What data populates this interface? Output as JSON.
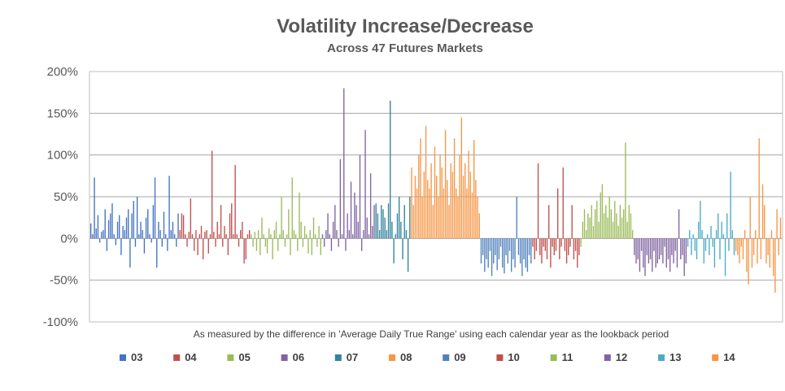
{
  "chart_data": {
    "type": "bar",
    "title": "Volatility Increase/Decrease",
    "subtitle": "Across 47 Futures Markets",
    "note": "As measured by the difference in 'Average  Daily True Range' using each calendar year as the lookback period",
    "y_ticks": [
      "200%",
      "150%",
      "100%",
      "50%",
      "0%",
      "-50%",
      "-100%"
    ],
    "ylim": [
      -100,
      200
    ],
    "grid": true,
    "legend_position": "bottom",
    "series": [
      {
        "name": "03",
        "color": "#4472C4",
        "values": [
          18,
          5,
          73,
          12,
          28,
          -5,
          8,
          10,
          35,
          -15,
          22,
          30,
          42,
          5,
          -8,
          20,
          28,
          -20,
          15,
          10,
          25,
          35,
          -35,
          30,
          45,
          -10,
          50,
          5,
          20,
          10,
          -18,
          25,
          35,
          5,
          -5,
          40,
          73,
          -35,
          20,
          10,
          -10,
          32,
          5,
          -15,
          75,
          10,
          20,
          5,
          -10,
          30
        ]
      },
      {
        "name": "04",
        "color": "#C0504D",
        "values": [
          10,
          30,
          28,
          5,
          -10,
          8,
          48,
          5,
          -15,
          10,
          -20,
          5,
          15,
          -25,
          8,
          10,
          -18,
          5,
          105,
          8,
          -10,
          20,
          5,
          40,
          -10,
          15,
          5,
          -20,
          30,
          42,
          5,
          88,
          5,
          -10,
          10,
          20,
          -30,
          -25,
          5,
          10
        ]
      },
      {
        "name": "05",
        "color": "#9BBB59",
        "values": [
          5,
          -10,
          8,
          -15,
          10,
          -20,
          25,
          5,
          -10,
          -18,
          12,
          5,
          -25,
          10,
          20,
          -15,
          5,
          50,
          10,
          -10,
          5,
          35,
          -20,
          73,
          10,
          5,
          -15,
          55,
          20,
          -10,
          15,
          5,
          -18,
          10,
          -20,
          25,
          5,
          -10,
          15,
          -20
        ]
      },
      {
        "name": "06",
        "color": "#8064A2",
        "values": [
          5,
          -10,
          10,
          30,
          5,
          -15,
          20,
          40,
          10,
          -10,
          95,
          5,
          180,
          -15,
          30,
          10,
          68,
          5,
          55,
          40,
          20,
          100,
          -15,
          10,
          130,
          25,
          5,
          78,
          15,
          40
        ]
      },
      {
        "name": "07",
        "color": "#31849B",
        "values": [
          42,
          30,
          10,
          40,
          35,
          25,
          10,
          42,
          165,
          20,
          -30,
          5,
          30,
          50,
          20,
          -25,
          40,
          10,
          -40,
          50
        ]
      },
      {
        "name": "08",
        "color": "#F79646",
        "values": [
          85,
          40,
          75,
          60,
          100,
          120,
          50,
          80,
          135,
          70,
          60,
          90,
          40,
          110,
          75,
          50,
          100,
          85,
          60,
          130,
          70,
          40,
          90,
          80,
          120,
          60,
          50,
          100,
          145,
          75,
          90,
          60,
          105,
          80,
          55,
          118,
          70,
          50,
          30
        ]
      },
      {
        "name": "09",
        "color": "#4F81BD",
        "values": [
          -30,
          -20,
          -40,
          -25,
          -35,
          -15,
          -45,
          -30,
          -20,
          -38,
          -25,
          -10,
          -35,
          -42,
          -20,
          -30,
          -15,
          -40,
          -25,
          -35,
          50,
          -20,
          -30,
          -45,
          -25,
          -35,
          -40,
          -20,
          -30
        ]
      },
      {
        "name": "10",
        "color": "#C0504D",
        "values": [
          -10,
          -25,
          -15,
          90,
          -20,
          -30,
          -10,
          -15,
          -25,
          40,
          -35,
          -10,
          -20,
          -15,
          60,
          -25,
          -10,
          85,
          -15,
          -30,
          -20,
          -10,
          40,
          -25,
          -15,
          -35,
          -20
        ]
      },
      {
        "name": "11",
        "color": "#9BBB59",
        "values": [
          -10,
          20,
          35,
          10,
          30,
          25,
          40,
          15,
          35,
          45,
          20,
          55,
          65,
          30,
          40,
          25,
          50,
          35,
          20,
          45,
          30,
          15,
          40,
          25,
          35,
          115,
          20,
          40,
          30,
          10
        ]
      },
      {
        "name": "12",
        "color": "#8064A2",
        "values": [
          -20,
          -30,
          -25,
          -40,
          -15,
          -35,
          -45,
          -20,
          -30,
          -25,
          -40,
          -15,
          -35,
          -30,
          -25,
          -20,
          -30,
          -10,
          -35,
          -25,
          -40,
          -20,
          -30,
          -15,
          -35,
          35,
          -25,
          -20,
          -45,
          -30
        ]
      },
      {
        "name": "13",
        "color": "#4BACC6",
        "values": [
          -10,
          10,
          -20,
          5,
          -15,
          -25,
          20,
          45,
          10,
          -30,
          -15,
          5,
          -20,
          15,
          -10,
          -35,
          10,
          30,
          -25,
          20,
          5,
          -45,
          30,
          -15,
          80,
          10,
          -20
        ]
      },
      {
        "name": "14",
        "color": "#F79646",
        "values": [
          -15,
          -20,
          -30,
          -10,
          -25,
          10,
          -40,
          -55,
          50,
          -35,
          -20,
          10,
          -30,
          120,
          -25,
          65,
          40,
          -30,
          -20,
          -35,
          10,
          -45,
          -65,
          35,
          -20,
          25
        ]
      }
    ]
  }
}
